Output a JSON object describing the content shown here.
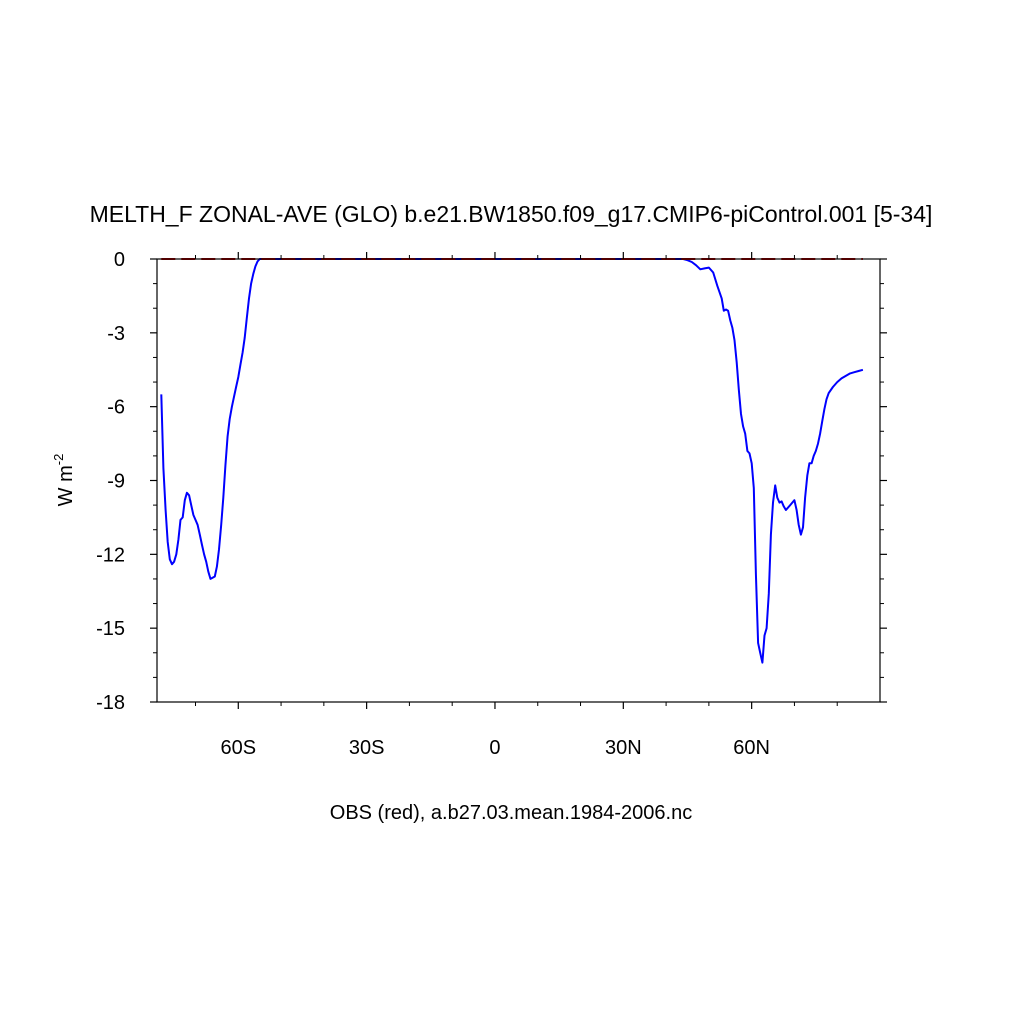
{
  "chart_data": {
    "type": "line",
    "title": "MELTH_F ZONAL-AVE (GLO) b.e21.BW1850.f09_g17.CMIP6-piControl.001 [5-34]",
    "xlabel": "OBS (red), a.b27.03.mean.1984-2006.nc",
    "ylabel": {
      "base": "W m",
      "superscript": "-2"
    },
    "xlim": [
      -79,
      90
    ],
    "ylim": [
      -18,
      0
    ],
    "x_ticks": [
      {
        "value": -60,
        "label": "60S"
      },
      {
        "value": -30,
        "label": "30S"
      },
      {
        "value": 0,
        "label": "0"
      },
      {
        "value": 30,
        "label": "30N"
      },
      {
        "value": 60,
        "label": "60N"
      }
    ],
    "y_ticks": [
      {
        "value": 0,
        "label": "0"
      },
      {
        "value": -3,
        "label": "-3"
      },
      {
        "value": -6,
        "label": "-6"
      },
      {
        "value": -9,
        "label": "-9"
      },
      {
        "value": -12,
        "label": "-12"
      },
      {
        "value": -15,
        "label": "-15"
      },
      {
        "value": -18,
        "label": "-18"
      }
    ],
    "series": [
      {
        "color": "#0000ff",
        "dash": "solid",
        "points": [
          [
            -78,
            -5.5
          ],
          [
            -77.5,
            -8.5
          ],
          [
            -77,
            -10.2
          ],
          [
            -76.5,
            -11.5
          ],
          [
            -76,
            -12.2
          ],
          [
            -75.5,
            -12.4
          ],
          [
            -75,
            -12.3
          ],
          [
            -74.5,
            -12.0
          ],
          [
            -74,
            -11.4
          ],
          [
            -73.5,
            -10.6
          ],
          [
            -73,
            -10.5
          ],
          [
            -72.5,
            -9.8
          ],
          [
            -72,
            -9.5
          ],
          [
            -71.5,
            -9.6
          ],
          [
            -71,
            -10.0
          ],
          [
            -70.5,
            -10.4
          ],
          [
            -70,
            -10.6
          ],
          [
            -69.5,
            -10.8
          ],
          [
            -69,
            -11.2
          ],
          [
            -68.5,
            -11.6
          ],
          [
            -68,
            -12.0
          ],
          [
            -67.5,
            -12.3
          ],
          [
            -67,
            -12.7
          ],
          [
            -66.5,
            -13.0
          ],
          [
            -65.5,
            -12.9
          ],
          [
            -65,
            -12.5
          ],
          [
            -64.5,
            -11.8
          ],
          [
            -64,
            -10.8
          ],
          [
            -63.5,
            -9.7
          ],
          [
            -63,
            -8.4
          ],
          [
            -62.5,
            -7.2
          ],
          [
            -62,
            -6.5
          ],
          [
            -61.5,
            -6.0
          ],
          [
            -61,
            -5.6
          ],
          [
            -60.5,
            -5.2
          ],
          [
            -60,
            -4.8
          ],
          [
            -59.5,
            -4.3
          ],
          [
            -59,
            -3.8
          ],
          [
            -58.5,
            -3.2
          ],
          [
            -58,
            -2.4
          ],
          [
            -57.5,
            -1.6
          ],
          [
            -57,
            -1.0
          ],
          [
            -56.5,
            -0.6
          ],
          [
            -56,
            -0.3
          ],
          [
            -55.5,
            -0.1
          ],
          [
            -55,
            0
          ],
          [
            -50,
            0
          ],
          [
            0,
            0
          ],
          [
            40,
            0
          ],
          [
            44,
            0
          ],
          [
            45,
            -0.05
          ],
          [
            46,
            -0.12
          ],
          [
            47,
            -0.25
          ],
          [
            48,
            -0.42
          ],
          [
            49,
            -0.38
          ],
          [
            50,
            -0.35
          ],
          [
            51,
            -0.55
          ],
          [
            52,
            -1.1
          ],
          [
            53,
            -1.6
          ],
          [
            53.5,
            -2.1
          ],
          [
            54,
            -2.05
          ],
          [
            54.5,
            -2.1
          ],
          [
            55,
            -2.5
          ],
          [
            55.5,
            -2.8
          ],
          [
            56,
            -3.3
          ],
          [
            56.5,
            -4.2
          ],
          [
            57,
            -5.3
          ],
          [
            57.5,
            -6.3
          ],
          [
            58,
            -6.8
          ],
          [
            58.5,
            -7.1
          ],
          [
            59,
            -7.8
          ],
          [
            59.5,
            -7.9
          ],
          [
            60,
            -8.3
          ],
          [
            60.5,
            -9.3
          ],
          [
            61,
            -12.8
          ],
          [
            61.5,
            -15.6
          ],
          [
            62,
            -16.0
          ],
          [
            62.5,
            -16.4
          ],
          [
            63,
            -15.3
          ],
          [
            63.5,
            -15.0
          ],
          [
            64,
            -13.6
          ],
          [
            64.5,
            -11.2
          ],
          [
            65,
            -9.9
          ],
          [
            65.5,
            -9.2
          ],
          [
            66,
            -9.7
          ],
          [
            66.5,
            -9.9
          ],
          [
            67,
            -9.85
          ],
          [
            67.5,
            -10.05
          ],
          [
            68,
            -10.2
          ],
          [
            68.5,
            -10.1
          ],
          [
            69,
            -10.0
          ],
          [
            69.5,
            -9.9
          ],
          [
            70,
            -9.8
          ],
          [
            70.5,
            -10.2
          ],
          [
            71,
            -10.8
          ],
          [
            71.5,
            -11.2
          ],
          [
            72,
            -10.9
          ],
          [
            72.5,
            -9.7
          ],
          [
            73,
            -8.8
          ],
          [
            73.5,
            -8.3
          ],
          [
            74,
            -8.3
          ],
          [
            74.5,
            -8.0
          ],
          [
            75,
            -7.8
          ],
          [
            75.5,
            -7.5
          ],
          [
            76,
            -7.1
          ],
          [
            76.5,
            -6.6
          ],
          [
            77,
            -6.1
          ],
          [
            77.5,
            -5.7
          ],
          [
            78,
            -5.45
          ],
          [
            79,
            -5.2
          ],
          [
            80,
            -5.0
          ],
          [
            81,
            -4.85
          ],
          [
            82,
            -4.75
          ],
          [
            83,
            -4.65
          ],
          [
            84,
            -4.6
          ],
          [
            85,
            -4.55
          ],
          [
            86,
            -4.5
          ]
        ]
      },
      {
        "color": "#cc0000",
        "dash": "dashed",
        "points": [
          [
            -78,
            0
          ],
          [
            86,
            0
          ]
        ]
      }
    ],
    "grid": false,
    "legend": "none"
  }
}
